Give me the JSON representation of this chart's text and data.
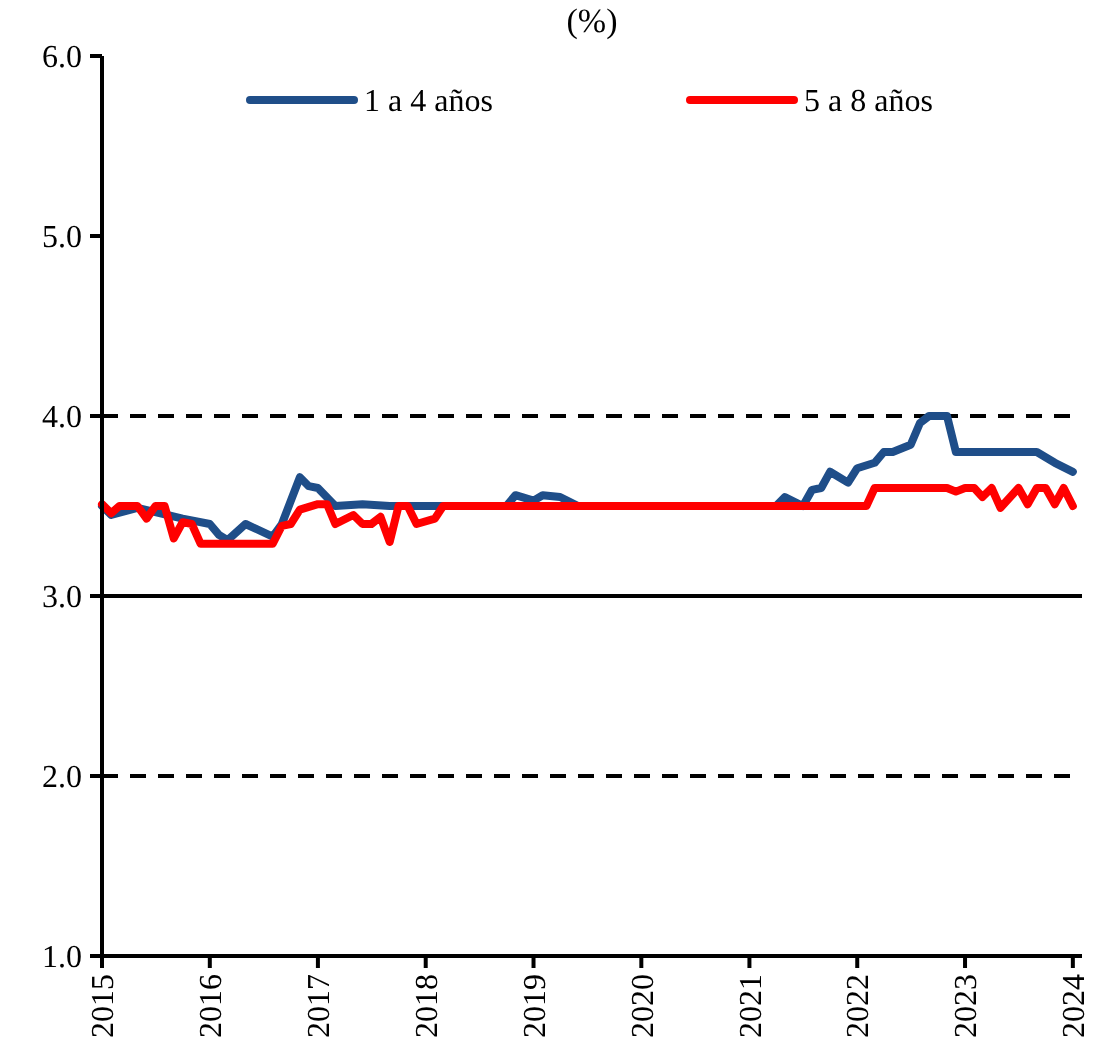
{
  "chart_data": {
    "type": "line",
    "title": "(%)",
    "ylim": [
      1,
      6
    ],
    "yticks": [
      {
        "value": 1,
        "label": "1.0"
      },
      {
        "value": 2,
        "label": "2.0"
      },
      {
        "value": 3,
        "label": "3.0"
      },
      {
        "value": 4,
        "label": "4.0"
      },
      {
        "value": 5,
        "label": "5.0"
      },
      {
        "value": 6,
        "label": "6.0"
      }
    ],
    "xlim": [
      "2015-01",
      "2024-02"
    ],
    "xticks": [
      "2015",
      "2016",
      "2017",
      "2018",
      "2019",
      "2020",
      "2021",
      "2022",
      "2023",
      "2024"
    ],
    "grid": false,
    "legend": "top",
    "marker": "none",
    "line_style": "solid",
    "ref_lines": [
      {
        "axis": "y",
        "value": 4,
        "color": "#000000",
        "line_style": "dashed"
      },
      {
        "axis": "y",
        "value": 3,
        "color": "#000000",
        "line_style": "solid"
      },
      {
        "axis": "y",
        "value": 2,
        "color": "#000000",
        "line_style": "dashed"
      }
    ],
    "series": [
      {
        "name": "1 a 4 años",
        "color": "#1f4e89",
        "x": [
          "2015-01",
          "2015-02",
          "2015-05",
          "2015-10",
          "2016-01",
          "2016-02",
          "2016-03",
          "2016-05",
          "2016-08",
          "2016-09",
          "2016-11",
          "2016-12",
          "2017-01",
          "2017-03",
          "2017-06",
          "2017-09",
          "2018-10",
          "2018-11",
          "2019-01",
          "2019-02",
          "2019-04",
          "2019-06",
          "2021-04",
          "2021-05",
          "2021-07",
          "2021-08",
          "2021-09",
          "2021-10",
          "2021-12",
          "2022-01",
          "2022-03",
          "2022-04",
          "2022-05",
          "2022-07",
          "2022-08",
          "2022-09",
          "2022-11",
          "2022-12",
          "2023-09",
          "2023-11",
          "2024-01"
        ],
        "values": [
          3.5,
          3.45,
          3.49,
          3.43,
          3.4,
          3.34,
          3.31,
          3.4,
          3.33,
          3.4,
          3.66,
          3.61,
          3.6,
          3.5,
          3.51,
          3.5,
          3.5,
          3.56,
          3.53,
          3.56,
          3.55,
          3.5,
          3.5,
          3.55,
          3.5,
          3.59,
          3.6,
          3.69,
          3.63,
          3.71,
          3.74,
          3.8,
          3.8,
          3.84,
          3.96,
          4.0,
          4.0,
          3.8,
          3.8,
          3.74,
          3.69
        ]
      },
      {
        "name": "5 a 8 años",
        "color": "#ff0000",
        "x": [
          "2015-01",
          "2015-02",
          "2015-03",
          "2015-05",
          "2015-06",
          "2015-07",
          "2015-08",
          "2015-09",
          "2015-10",
          "2015-11",
          "2015-12",
          "2016-08",
          "2016-09",
          "2016-10",
          "2016-11",
          "2017-01",
          "2017-02",
          "2017-03",
          "2017-05",
          "2017-06",
          "2017-07",
          "2017-08",
          "2017-09",
          "2017-10",
          "2017-11",
          "2017-12",
          "2018-02",
          "2018-03",
          "2022-02",
          "2022-03",
          "2022-11",
          "2022-12",
          "2023-01",
          "2023-02",
          "2023-03",
          "2023-04",
          "2023-05",
          "2023-07",
          "2023-08",
          "2023-09",
          "2023-10",
          "2023-11",
          "2023-12",
          "2024-01"
        ],
        "values": [
          3.51,
          3.46,
          3.5,
          3.5,
          3.43,
          3.5,
          3.5,
          3.32,
          3.41,
          3.4,
          3.29,
          3.29,
          3.39,
          3.4,
          3.48,
          3.51,
          3.51,
          3.4,
          3.45,
          3.4,
          3.4,
          3.44,
          3.3,
          3.5,
          3.5,
          3.4,
          3.43,
          3.5,
          3.5,
          3.6,
          3.6,
          3.58,
          3.6,
          3.6,
          3.55,
          3.6,
          3.49,
          3.6,
          3.51,
          3.6,
          3.6,
          3.51,
          3.6,
          3.5
        ]
      }
    ]
  }
}
